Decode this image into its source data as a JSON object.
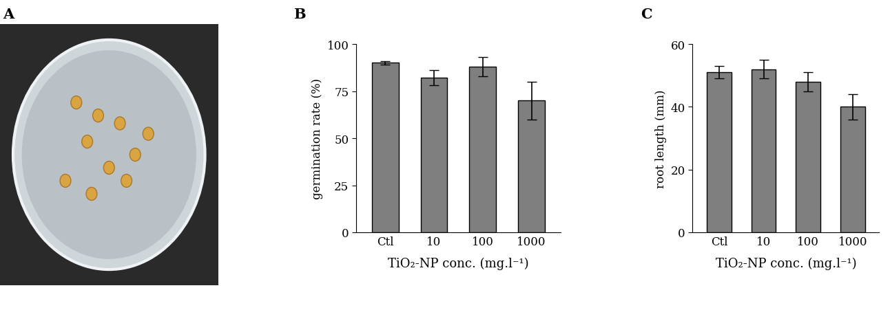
{
  "image_panel": {
    "label": "A"
  },
  "chart_data": [
    {
      "type": "bar",
      "title": "B",
      "categories": [
        "Ctl",
        "10",
        "100",
        "1000"
      ],
      "values": [
        90,
        82,
        88,
        70
      ],
      "errors": [
        1,
        4,
        5,
        10
      ],
      "color": "#7f7f7f",
      "x_label": "TiO₂-NP conc. (mg.l⁻¹)",
      "y_label": "germination rate (%)",
      "ylim": [
        0,
        100
      ],
      "yticks": [
        0,
        25,
        50,
        75,
        100
      ],
      "grid": false
    },
    {
      "type": "bar",
      "title": "C",
      "categories": [
        "Ctl",
        "10",
        "100",
        "1000"
      ],
      "values": [
        51,
        52,
        48,
        40
      ],
      "errors": [
        2,
        3,
        3,
        4
      ],
      "color": "#7f7f7f",
      "x_label": "TiO₂-NP conc. (mg.l⁻¹)",
      "y_label": "root length (mm)",
      "ylim": [
        0,
        60
      ],
      "yticks": [
        0,
        20,
        40,
        60
      ],
      "grid": false
    }
  ]
}
